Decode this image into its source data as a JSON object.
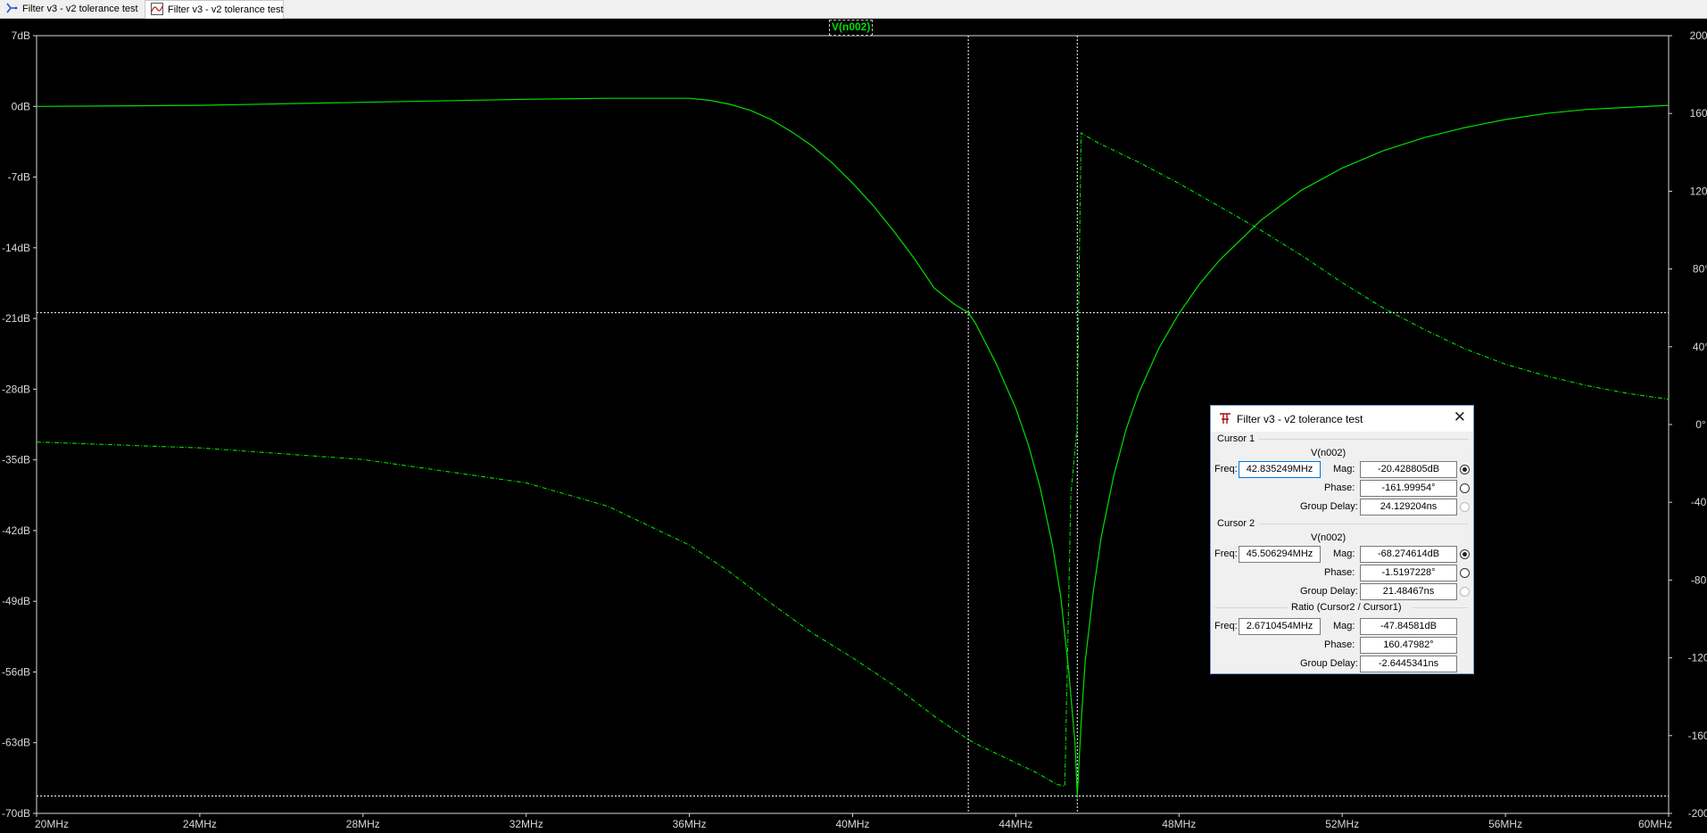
{
  "tabs": [
    {
      "label": "Filter v3 - v2 tolerance test",
      "icon": "schematic-icon"
    },
    {
      "label": "Filter v3 - v2 tolerance test",
      "icon": "waveform-icon"
    }
  ],
  "trace_label": "V(n002)",
  "colors": {
    "trace": "#00e000",
    "grid_cursor": "#ffffff",
    "axis_text": "#d8d8d8"
  },
  "axes": {
    "left_ticks": [
      "7dB",
      "0dB",
      "-7dB",
      "-14dB",
      "-21dB",
      "-28dB",
      "-35dB",
      "-42dB",
      "-49dB",
      "-56dB",
      "-63dB",
      "-70dB"
    ],
    "right_ticks": [
      "200°",
      "160°",
      "120°",
      "80°",
      "40°",
      "0°",
      "-40°",
      "-80°",
      "-120°",
      "-160°",
      "-200°"
    ],
    "x_ticks": [
      "20MHz",
      "24MHz",
      "28MHz",
      "32MHz",
      "36MHz",
      "40MHz",
      "44MHz",
      "48MHz",
      "52MHz",
      "56MHz",
      "60MHz"
    ]
  },
  "chart_data": {
    "type": "line",
    "x_unit": "MHz",
    "xlim": [
      20,
      60
    ],
    "ylim_mag_db": [
      -70,
      7
    ],
    "ylim_phase_deg": [
      -200,
      200
    ],
    "series": [
      {
        "x": [
          20,
          24,
          28,
          32,
          34,
          35,
          36,
          36.5,
          37,
          37.5,
          38,
          38.5,
          39,
          39.5,
          40,
          40.5,
          41,
          41.5,
          42,
          42.5,
          42.835,
          43,
          43.5,
          44,
          44.3,
          44.6,
          44.9,
          45.1,
          45.3,
          45.45,
          45.506,
          45.6,
          45.7,
          45.9,
          46.1,
          46.4,
          46.7,
          47,
          47.5,
          48,
          48.5,
          49,
          50,
          51,
          52,
          53,
          54,
          55,
          56,
          57,
          58,
          59,
          60
        ],
        "values": [
          0,
          0.1,
          0.4,
          0.7,
          0.8,
          0.8,
          0.8,
          0.6,
          0.2,
          -0.4,
          -1.3,
          -2.5,
          -3.9,
          -5.6,
          -7.6,
          -9.8,
          -12.3,
          -15,
          -18,
          -19.6,
          -20.43,
          -21.4,
          -25.3,
          -29.9,
          -33.4,
          -37.8,
          -43.5,
          -48.5,
          -56,
          -63,
          -68.3,
          -61,
          -55,
          -48,
          -42.5,
          -36.6,
          -32,
          -28.5,
          -24,
          -20.5,
          -17.6,
          -15.2,
          -11.3,
          -8.3,
          -6.1,
          -4.4,
          -3.1,
          -2.1,
          -1.3,
          -0.7,
          -0.3,
          -0.1,
          0.1
        ]
      },
      {
        "x": [
          20,
          24,
          28,
          32,
          34,
          36,
          37,
          38,
          39,
          40,
          41,
          42,
          42.835,
          43,
          44,
          44.5,
          45,
          45.2,
          45.35,
          45.5,
          45.6,
          46,
          47,
          48,
          49,
          50,
          51,
          52,
          53,
          54,
          55,
          56,
          57,
          58,
          59,
          60
        ],
        "values": [
          -9,
          -12,
          -18,
          -30,
          -42,
          -62,
          -76,
          -92,
          -107,
          -120,
          -134,
          -150,
          -162,
          -164,
          -174,
          -179,
          -185,
          -186,
          -36,
          -1.5,
          150,
          145,
          135,
          124,
          112,
          100,
          87,
          73,
          60,
          49,
          39,
          31,
          25,
          20,
          16,
          13
        ]
      }
    ],
    "cursor_x": [
      42.835249,
      45.506294
    ],
    "cursor_y_db": [
      -20.428805,
      -68.274614
    ]
  },
  "dialog": {
    "title": "Filter v3 - v2 tolerance test",
    "cursor1": {
      "group": "Cursor 1",
      "trace": "V(n002)",
      "freq_label": "Freq:",
      "freq": "42.835249MHz",
      "mag_label": "Mag:",
      "mag": "-20.428805dB",
      "phase_label": "Phase:",
      "phase": "-161.99954°",
      "gd_label": "Group Delay:",
      "gd": "24.129204ns"
    },
    "cursor2": {
      "group": "Cursor 2",
      "trace": "V(n002)",
      "freq_label": "Freq:",
      "freq": "45.506294MHz",
      "mag_label": "Mag:",
      "mag": "-68.274614dB",
      "phase_label": "Phase:",
      "phase": "-1.5197228°",
      "gd_label": "Group Delay:",
      "gd": "21.48467ns"
    },
    "ratio": {
      "group": "Ratio (Cursor2 / Cursor1)",
      "freq_label": "Freq:",
      "freq": "2.6710454MHz",
      "mag_label": "Mag:",
      "mag": "-47.84581dB",
      "phase_label": "Phase:",
      "phase": "160.47982°",
      "gd_label": "Group Delay:",
      "gd": "-2.6445341ns"
    }
  }
}
